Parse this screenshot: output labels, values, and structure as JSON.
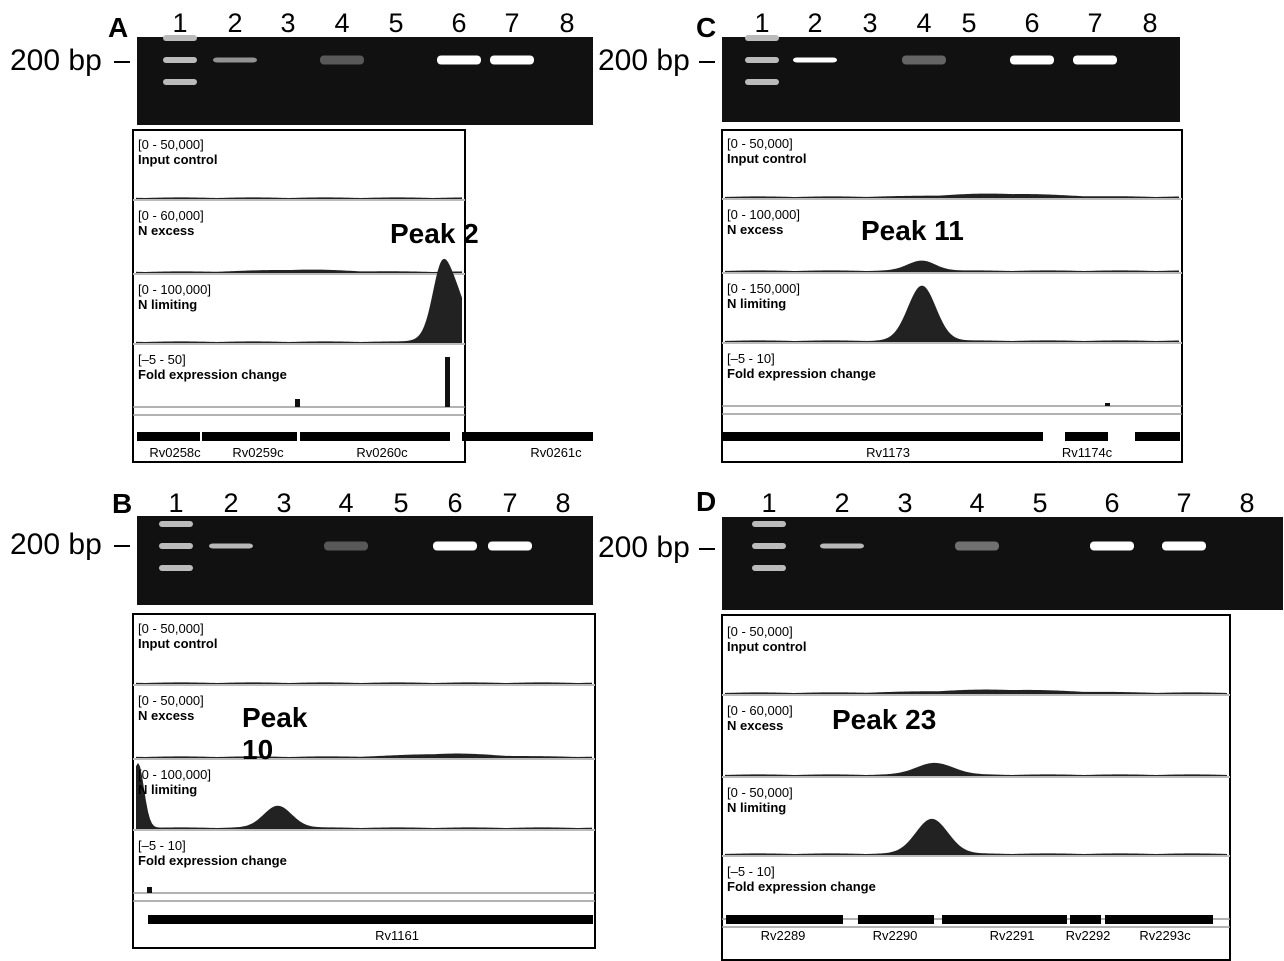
{
  "panels": [
    {
      "letter": "A",
      "lanes": [
        "1",
        "2",
        "3",
        "4",
        "5",
        "6",
        "7",
        "8"
      ],
      "marker": "200 bp",
      "peak": "Peak 2",
      "tracks": [
        {
          "range": "[0 - 50,000]",
          "name": "Input control"
        },
        {
          "range": "[0 - 60,000]",
          "name": "N excess"
        },
        {
          "range": "[0 - 100,000]",
          "name": "N limiting"
        },
        {
          "range": "[–5 - 50]",
          "name": "Fold expression change"
        }
      ],
      "genes": [
        "Rv0258c",
        "Rv0259c",
        "Rv0260c",
        "Rv0261c"
      ]
    },
    {
      "letter": "B",
      "lanes": [
        "1",
        "2",
        "3",
        "4",
        "5",
        "6",
        "7",
        "8"
      ],
      "marker": "200 bp",
      "peak": "Peak 10",
      "tracks": [
        {
          "range": "[0 - 50,000]",
          "name": "Input control"
        },
        {
          "range": "[0 - 50,000]",
          "name": "N excess"
        },
        {
          "range": "[0 - 100,000]",
          "name": "N limiting"
        },
        {
          "range": "[–5 - 10]",
          "name": "Fold expression change"
        }
      ],
      "genes": [
        "Rv1161"
      ]
    },
    {
      "letter": "C",
      "lanes": [
        "1",
        "2",
        "3",
        "4",
        "5",
        "6",
        "7",
        "8"
      ],
      "marker": "200 bp",
      "peak": "Peak 11",
      "tracks": [
        {
          "range": "[0 - 50,000]",
          "name": "Input control"
        },
        {
          "range": "[0 - 100,000]",
          "name": "N excess"
        },
        {
          "range": "[0 - 150,000]",
          "name": "N limiting"
        },
        {
          "range": "[–5 - 10]",
          "name": "Fold expression change"
        }
      ],
      "genes": [
        "Rv1173",
        "Rv1174c"
      ]
    },
    {
      "letter": "D",
      "lanes": [
        "1",
        "2",
        "3",
        "4",
        "5",
        "6",
        "7",
        "8"
      ],
      "marker": "200 bp",
      "peak": "Peak 23",
      "tracks": [
        {
          "range": "[0 - 50,000]",
          "name": "Input control"
        },
        {
          "range": "[0 - 60,000]",
          "name": "N excess"
        },
        {
          "range": "[0 - 50,000]",
          "name": "N limiting"
        },
        {
          "range": "[–5 - 10]",
          "name": "Fold expression change"
        }
      ],
      "genes": [
        "Rv2289",
        "Rv2290",
        "Rv2291",
        "Rv2292",
        "Rv2293c"
      ]
    }
  ]
}
